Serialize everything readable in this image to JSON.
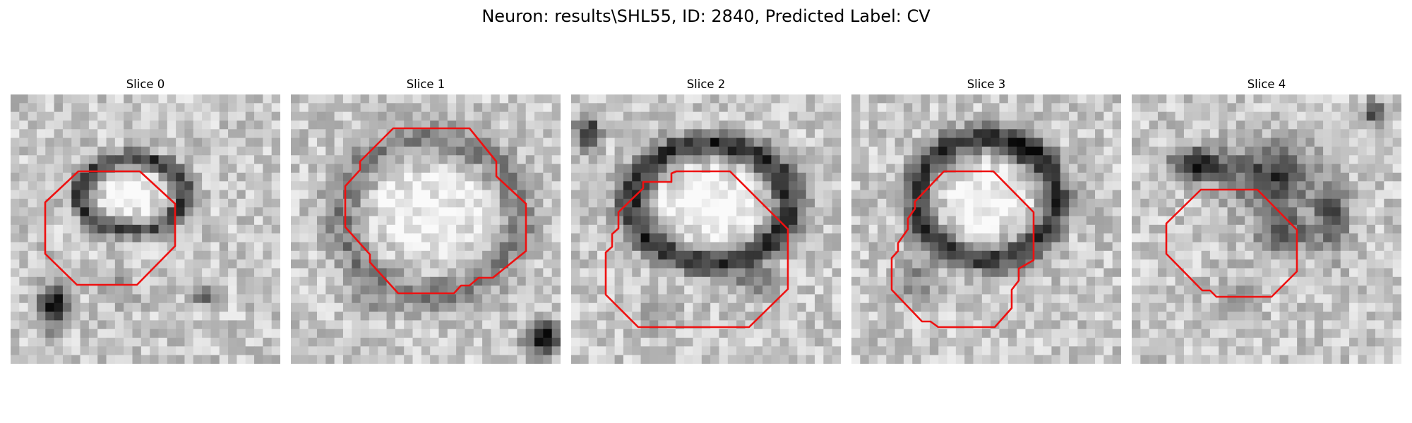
{
  "figure": {
    "title": "Neuron: results\\SHL55, ID: 2840, Predicted Label: CV"
  },
  "colors": {
    "contour": "#ee1111",
    "background": "#ffffff"
  },
  "colormap": "gray",
  "slices": [
    {
      "label": "Slice 0"
    },
    {
      "label": "Slice 1"
    },
    {
      "label": "Slice 2"
    },
    {
      "label": "Slice 3"
    },
    {
      "label": "Slice 4"
    }
  ]
}
